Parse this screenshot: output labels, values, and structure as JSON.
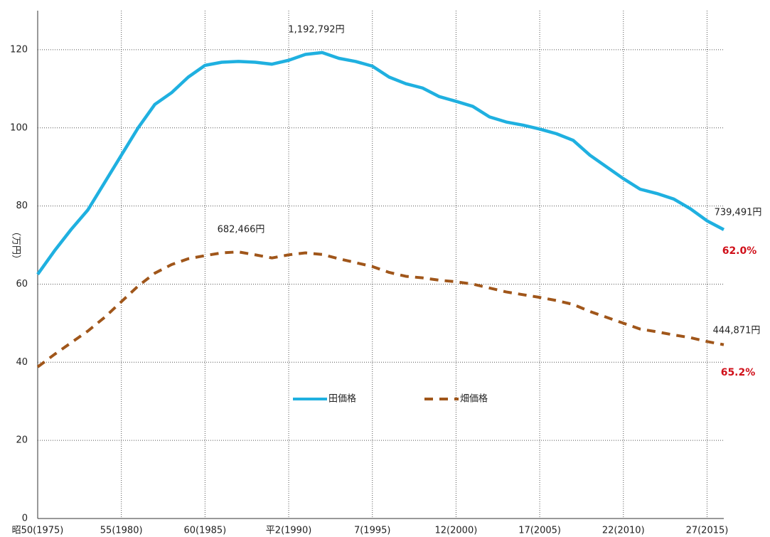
{
  "chart_data": {
    "type": "line",
    "y_label": "（万円）",
    "x": [
      1975,
      1976,
      1977,
      1978,
      1979,
      1980,
      1981,
      1982,
      1983,
      1984,
      1985,
      1986,
      1987,
      1988,
      1989,
      1990,
      1991,
      1992,
      1993,
      1994,
      1995,
      1996,
      1997,
      1998,
      1999,
      2000,
      2001,
      2002,
      2003,
      2004,
      2005,
      2006,
      2007,
      2008,
      2009,
      2010,
      2011,
      2012,
      2013,
      2014,
      2015,
      2016
    ],
    "series": [
      {
        "name": "田価格",
        "color": "#1fb0e0",
        "dashed": false,
        "values": [
          62.5,
          68.5,
          74,
          79,
          86,
          93,
          100,
          106,
          109,
          113,
          116,
          116.8,
          117,
          116.8,
          116.3,
          117.3,
          118.8,
          119.28,
          117.8,
          117,
          115.8,
          113,
          111.3,
          110.2,
          108,
          106.8,
          105.5,
          102.8,
          101.5,
          100.7,
          99.7,
          98.5,
          96.8,
          93,
          90,
          87,
          84.3,
          83.2,
          81.8,
          79.3,
          76.2,
          73.95
        ]
      },
      {
        "name": "畑価格",
        "color": "#a0561a",
        "dashed": true,
        "values": [
          38.8,
          42,
          45,
          48,
          51.5,
          55.5,
          59.5,
          62.8,
          65,
          66.5,
          67.3,
          68,
          68.25,
          67.5,
          66.7,
          67.5,
          68,
          67.6,
          66.5,
          65.5,
          64.5,
          63,
          62,
          61.6,
          61,
          60.6,
          60,
          59,
          58,
          57.3,
          56.6,
          55.8,
          54.8,
          53,
          51.5,
          50,
          48.5,
          47.8,
          47,
          46.3,
          45.3,
          44.49
        ]
      }
    ],
    "annotations": [
      "1,192,792円",
      "682,466円",
      "739,491円",
      "444,871円",
      "62.0%",
      "65.2%"
    ],
    "xlim": [
      1975,
      2016
    ],
    "xticks": [
      {
        "value": 1975,
        "label": "昭50(1975)"
      },
      {
        "value": 1980,
        "label": "55(1980)"
      },
      {
        "value": 1985,
        "label": "60(1985)"
      },
      {
        "value": 1990,
        "label": "平2(1990)"
      },
      {
        "value": 1995,
        "label": "7(1995)"
      },
      {
        "value": 2000,
        "label": "12(2000)"
      },
      {
        "value": 2005,
        "label": "17(2005)"
      },
      {
        "value": 2010,
        "label": "22(2010)"
      },
      {
        "value": 2015,
        "label": "27(2015)"
      }
    ],
    "ylim": [
      0,
      130
    ],
    "yticks": [
      0,
      20,
      40,
      60,
      80,
      100,
      120
    ],
    "grid": true
  }
}
